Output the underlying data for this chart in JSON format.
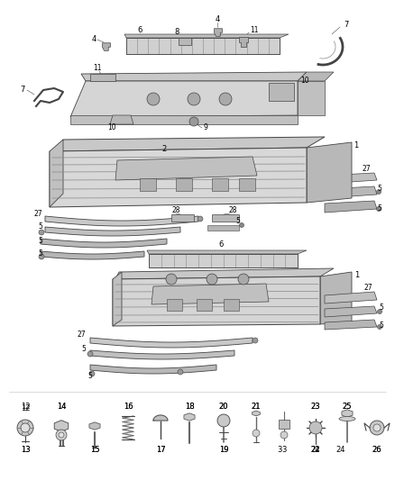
{
  "bg_color": "#ffffff",
  "lc": "#444444",
  "lc_light": "#888888",
  "lc_mid": "#666666",
  "fig_width": 4.38,
  "fig_height": 5.33,
  "dpi": 100,
  "label_fs": 6.0,
  "small_fs": 5.5
}
